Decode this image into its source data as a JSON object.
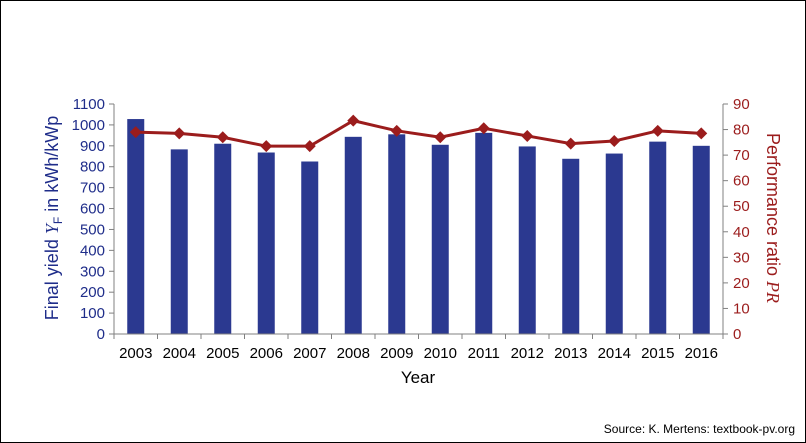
{
  "chart_data": {
    "type": "bar+line",
    "categories": [
      "2003",
      "2004",
      "2005",
      "2006",
      "2007",
      "2008",
      "2009",
      "2010",
      "2011",
      "2012",
      "2013",
      "2014",
      "2015",
      "2016"
    ],
    "series": [
      {
        "name": "Final yield",
        "axis": "left",
        "type": "bar",
        "color": "#2b3990",
        "values": [
          1028,
          883,
          910,
          868,
          825,
          943,
          955,
          905,
          962,
          897,
          838,
          863,
          920,
          900
        ]
      },
      {
        "name": "Performance ratio",
        "axis": "right",
        "type": "line",
        "marker": "diamond",
        "color": "#9b1c1c",
        "values": [
          79,
          78.5,
          77,
          73.5,
          73.5,
          83.5,
          79.5,
          77,
          80.5,
          77.5,
          74.5,
          75.5,
          79.5,
          78.5
        ]
      }
    ],
    "ylim_left": [
      0,
      1100
    ],
    "yticks_left": [
      0,
      100,
      200,
      300,
      400,
      500,
      600,
      700,
      800,
      900,
      1000,
      1100
    ],
    "ylim_right": [
      0,
      90
    ],
    "yticks_right": [
      0,
      10,
      20,
      30,
      40,
      50,
      60,
      70,
      80,
      90
    ],
    "xlabel": "Year",
    "ylabel_left": {
      "text": "Final yield ",
      "symbol": "Y",
      "subscript": "F",
      "suffix": " in kWh/kWp"
    },
    "ylabel_right": {
      "text": "Performance ratio ",
      "symbol": "PR"
    },
    "grid": false,
    "legend": "none"
  },
  "source_text": "Source: K. Mertens: textbook-pv.org"
}
